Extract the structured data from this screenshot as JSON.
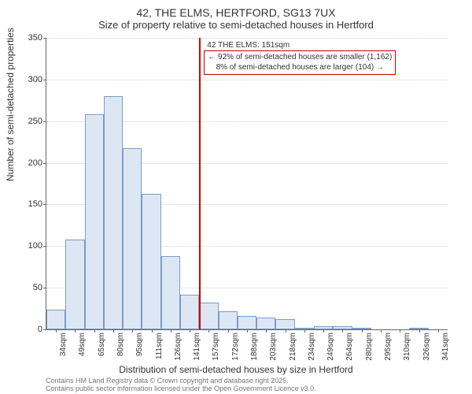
{
  "title": "42, THE ELMS, HERTFORD, SG13 7UX",
  "subtitle": "Size of property relative to semi-detached houses in Hertford",
  "ylabel": "Number of semi-detached properties",
  "xlabel": "Distribution of semi-detached houses by size in Hertford",
  "chart": {
    "type": "histogram",
    "ylim": [
      0,
      350
    ],
    "ytick_step": 50,
    "bar_fill": "#dde7f4",
    "bar_stroke": "#7a9cc6",
    "background_color": "#ffffff",
    "grid_color": "#cccccc",
    "bar_width_ratio": 1.0,
    "bins": [
      {
        "label": "34sqm",
        "value": 24
      },
      {
        "label": "49sqm",
        "value": 108
      },
      {
        "label": "65sqm",
        "value": 258
      },
      {
        "label": "80sqm",
        "value": 280
      },
      {
        "label": "95sqm",
        "value": 218
      },
      {
        "label": "111sqm",
        "value": 163
      },
      {
        "label": "126sqm",
        "value": 88
      },
      {
        "label": "141sqm",
        "value": 42
      },
      {
        "label": "157sqm",
        "value": 32
      },
      {
        "label": "172sqm",
        "value": 22
      },
      {
        "label": "188sqm",
        "value": 16
      },
      {
        "label": "203sqm",
        "value": 14
      },
      {
        "label": "218sqm",
        "value": 12
      },
      {
        "label": "234sqm",
        "value": 2
      },
      {
        "label": "249sqm",
        "value": 4
      },
      {
        "label": "264sqm",
        "value": 4
      },
      {
        "label": "280sqm",
        "value": 2
      },
      {
        "label": "295sqm",
        "value": 0
      },
      {
        "label": "310sqm",
        "value": 0
      },
      {
        "label": "326sqm",
        "value": 2
      },
      {
        "label": "341sqm",
        "value": 0
      }
    ],
    "reference_line": {
      "bin_index": 8,
      "position_in_bin": 0.0,
      "color": "#d40000"
    },
    "annotations": {
      "top": {
        "text": "42 THE ELMS: 151sqm",
        "boxed": false
      },
      "box": {
        "line1": "← 92% of semi-detached houses are smaller (1,162)",
        "line2": "8% of semi-detached houses are larger (104) →",
        "boxed": true,
        "border_color": "#c00000"
      }
    }
  },
  "footer": {
    "line1": "Contains HM Land Registry data © Crown copyright and database right 2025.",
    "line2": "Contains public sector information licensed under the Open Government Licence v3.0."
  }
}
